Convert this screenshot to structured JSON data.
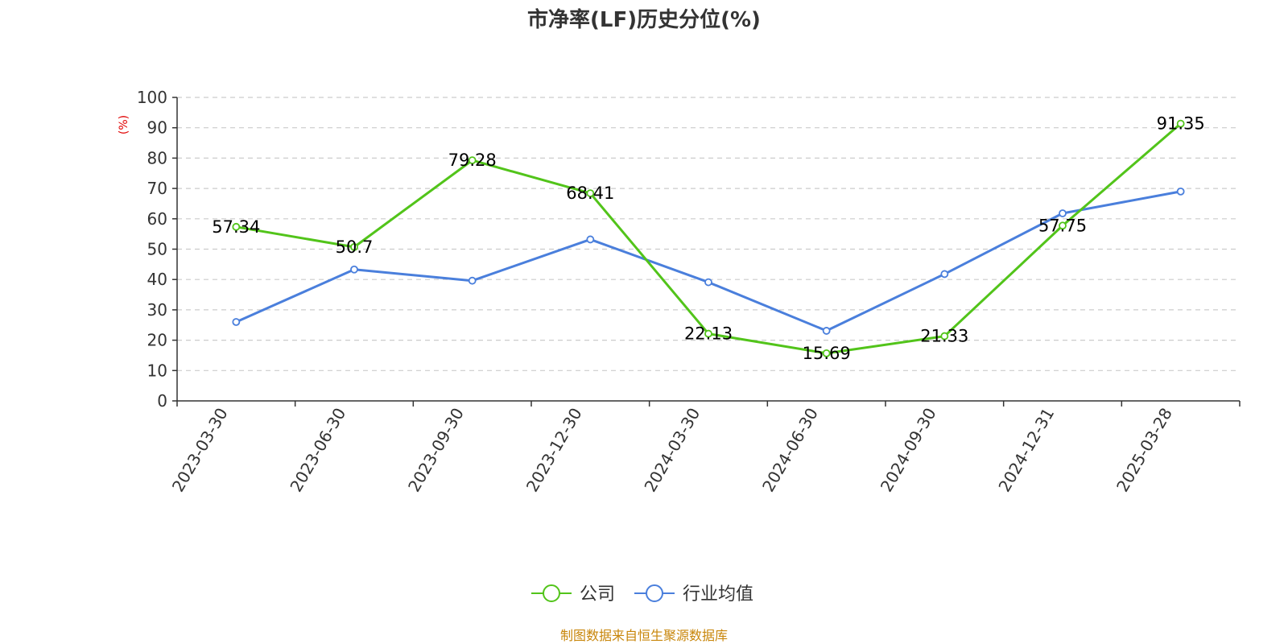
{
  "chart_data": {
    "type": "line",
    "title": "市净率(LF)历史分位(%)",
    "ylabel": "(%)",
    "xlabel": "",
    "ylim": [
      0,
      100
    ],
    "yticks": [
      0,
      10,
      20,
      30,
      40,
      50,
      60,
      70,
      80,
      90,
      100
    ],
    "grid": true,
    "legend_position": "bottom",
    "categories": [
      "2023-03-30",
      "2023-06-30",
      "2023-09-30",
      "2023-12-30",
      "2024-03-30",
      "2024-06-30",
      "2024-09-30",
      "2024-12-31",
      "2025-03-28"
    ],
    "series": [
      {
        "name": "公司",
        "color": "#52c41a",
        "values": [
          57.34,
          50.7,
          79.28,
          68.41,
          22.13,
          15.69,
          21.33,
          57.75,
          91.35
        ],
        "data_labels": [
          "57.34",
          "50.7",
          "79.28",
          "68.41",
          "22.13",
          "15.69",
          "21.33",
          "57.75",
          "91.35"
        ]
      },
      {
        "name": "行业均值",
        "color": "#4a7fdc",
        "values": [
          26.0,
          43.3,
          39.6,
          53.2,
          39.1,
          23.1,
          41.8,
          61.8,
          69.0
        ]
      }
    ]
  },
  "footer": {
    "source": "制图数据来自恒生聚源数据库"
  }
}
